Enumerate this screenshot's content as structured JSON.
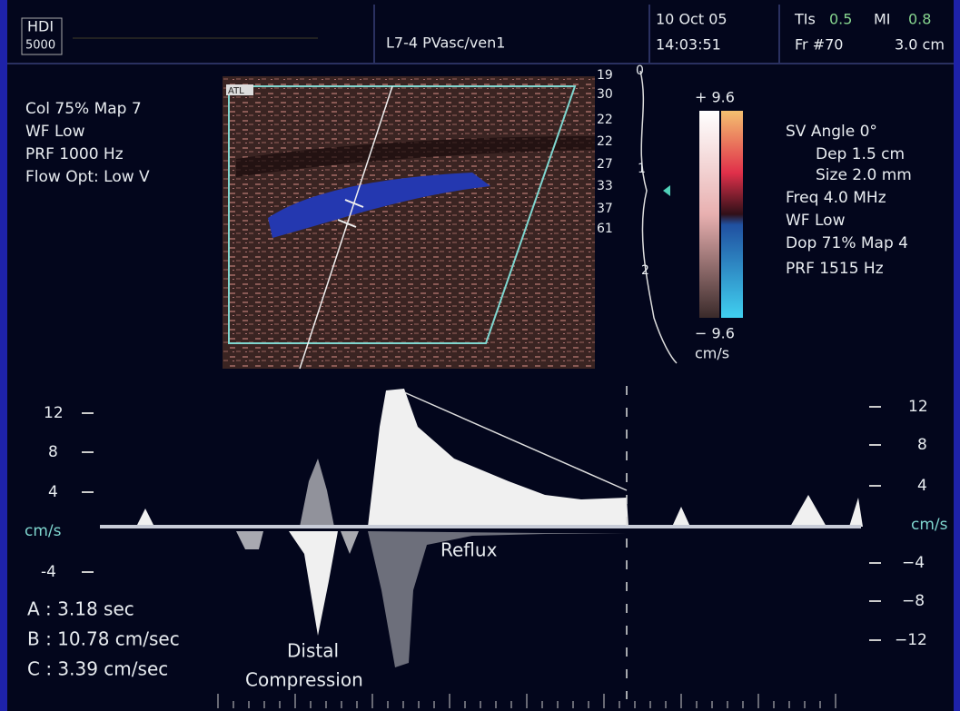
{
  "header": {
    "logo": [
      "HDI",
      "5000"
    ],
    "probe": "L7-4 PVasc/ven1",
    "date": "10 Oct 05",
    "time": "14:03:51",
    "tis_label": "TIs",
    "tis_value": "0.5",
    "mi_label": "MI",
    "mi_value": "0.8",
    "frame": "Fr #70",
    "depth": "3.0 cm"
  },
  "color_params": [
    "Col 75%  Map 7",
    "WF Low",
    "PRF 1000  Hz",
    "Flow Opt: Low V"
  ],
  "doppler_params": [
    "SV Angle 0°",
    "Dep 1.5  cm",
    "Size 2.0  mm",
    "Freq 4.0  MHz",
    "WF Low",
    "Dop 71%  Map 4",
    "PRF 1515  Hz"
  ],
  "image": {
    "logo": "ATL",
    "scale_numbers": [
      "19",
      "30",
      "22",
      "22",
      "27",
      "33",
      "37",
      "61"
    ],
    "depth_marks": [
      "0",
      "1",
      "2"
    ]
  },
  "color_bar": {
    "top": "+ 9.6",
    "bottom": "− 9.6",
    "unit": "cm/s"
  },
  "spectrum": {
    "left_ticks": [
      "12",
      "8",
      "4",
      "cm/s",
      "-4"
    ],
    "right_ticks": [
      "12",
      "8",
      "4",
      "cm/s",
      "−4",
      "−8",
      "−12"
    ],
    "annotations": [
      "Reflux",
      "Distal",
      "Compression"
    ],
    "measurements": [
      "A : 3.18 sec",
      "B : 10.78 cm/sec",
      "C : 3.39 cm/sec"
    ]
  }
}
